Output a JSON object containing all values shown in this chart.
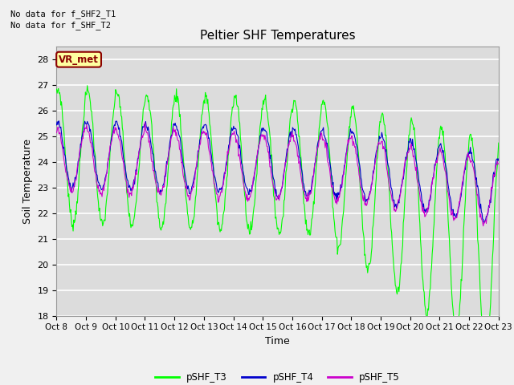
{
  "title": "Peltier SHF Temperatures",
  "ylabel": "Soil Temperature",
  "xlabel": "Time",
  "top_text_1": "No data for f_SHF2_T1",
  "top_text_2": "No data for f_SHF_T2",
  "vr_met_label": "VR_met",
  "ylim": [
    18.0,
    28.5
  ],
  "yticks": [
    18.0,
    19.0,
    20.0,
    21.0,
    22.0,
    23.0,
    24.0,
    25.0,
    26.0,
    27.0,
    28.0
  ],
  "xtick_labels": [
    "Oct 8",
    "Oct 9",
    "Oct 10",
    "Oct 11",
    "Oct 12",
    "Oct 13",
    "Oct 14",
    "Oct 15",
    "Oct 16",
    "Oct 17",
    "Oct 18",
    "Oct 19",
    "Oct 20",
    "Oct 21",
    "Oct 22",
    "Oct 23"
  ],
  "color_T3": "#00FF00",
  "color_T4": "#0000CD",
  "color_T5": "#CC00CC",
  "bg_color": "#DCDCDC",
  "fig_color": "#F0F0F0",
  "grid_color": "#FFFFFF",
  "legend_labels": [
    "pSHF_T3",
    "pSHF_T4",
    "pSHF_T5"
  ],
  "n_days": 15,
  "n_points": 720
}
